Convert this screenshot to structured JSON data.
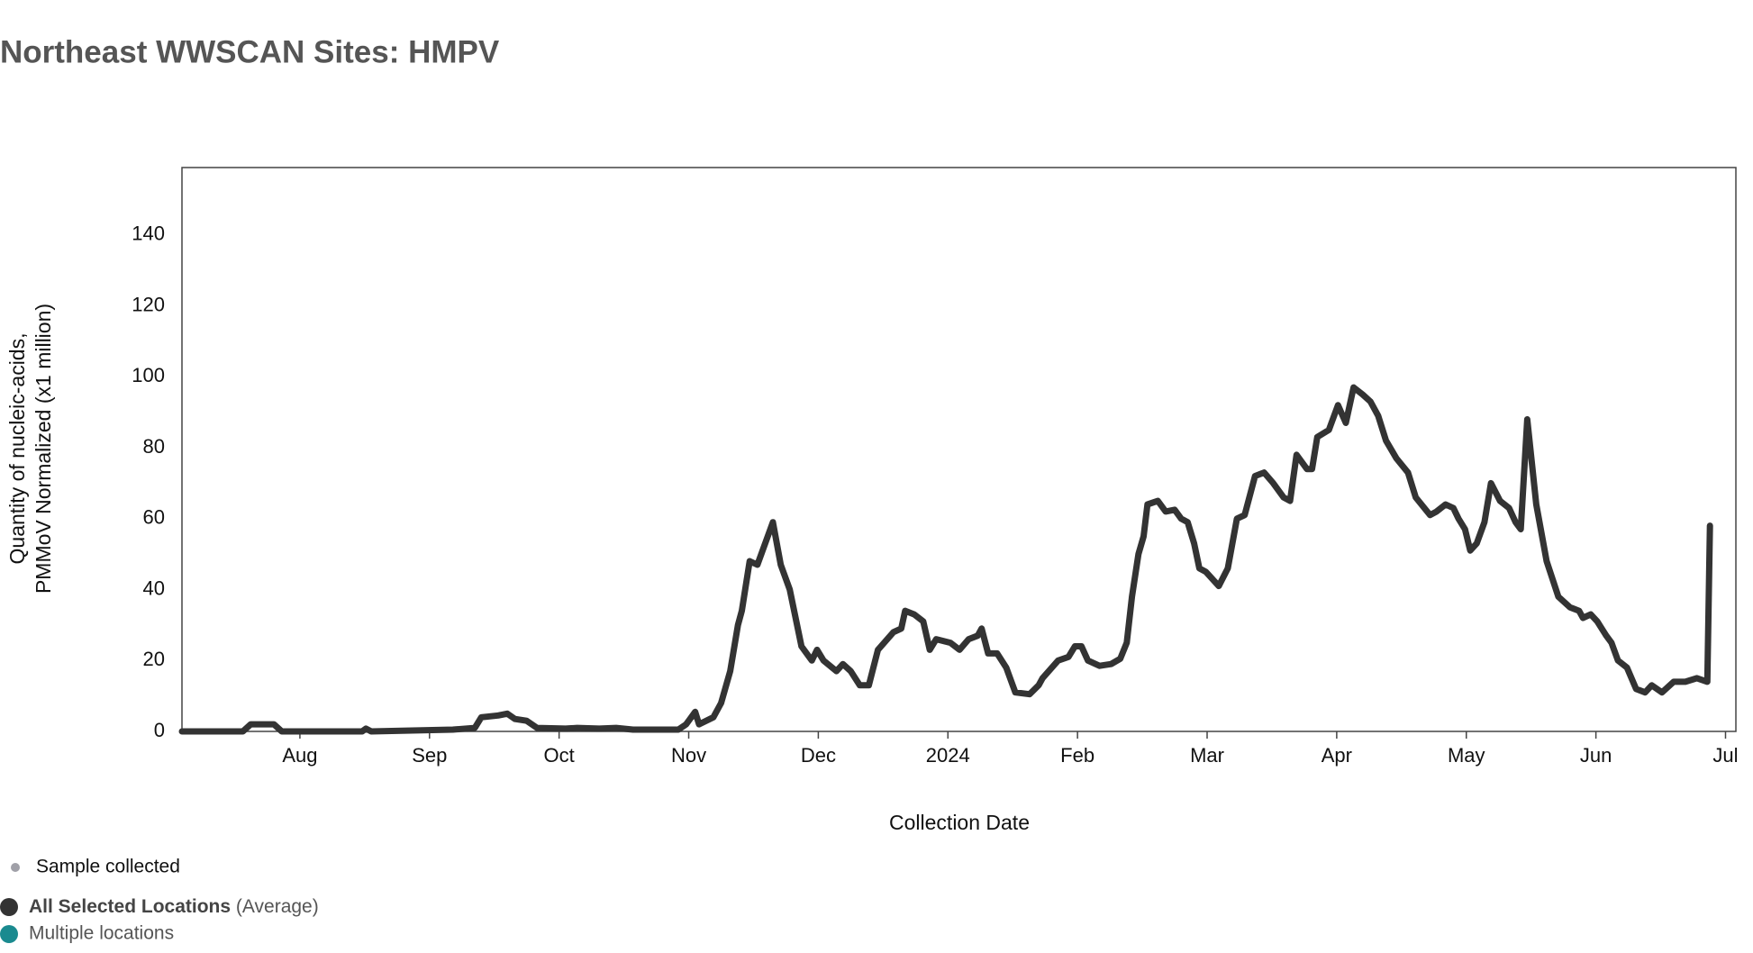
{
  "chart_data": {
    "type": "line",
    "title": "Northeast WWSCAN Sites: HMPV",
    "y_label": [
      "Quantity of nucleic-acids,",
      "PMMoV Normalized (x1 million)"
    ],
    "x_label": "Collection Date",
    "xlim": [
      0.09,
      12.08
    ],
    "xticks": [
      {
        "value": 1,
        "label": "Aug"
      },
      {
        "value": 2,
        "label": "Sep"
      },
      {
        "value": 3,
        "label": "Oct"
      },
      {
        "value": 4,
        "label": "Nov"
      },
      {
        "value": 5,
        "label": "Dec"
      },
      {
        "value": 6,
        "label": "2024"
      },
      {
        "value": 7,
        "label": "Feb"
      },
      {
        "value": 8,
        "label": "Mar"
      },
      {
        "value": 9,
        "label": "Apr"
      },
      {
        "value": 10,
        "label": "May"
      },
      {
        "value": 11,
        "label": "Jun"
      },
      {
        "value": 12,
        "label": "Jul"
      }
    ],
    "ylim": [
      0,
      159
    ],
    "yticks": [
      0,
      20,
      40,
      60,
      80,
      100,
      120,
      140
    ],
    "grid": false,
    "series": [
      {
        "name": "All Selected Locations",
        "name_note": "(Average)",
        "color": "#333333",
        "x": [
          0.09,
          0.56,
          0.62,
          0.8,
          0.86,
          1.48,
          1.51,
          1.55,
          2.18,
          2.35,
          2.4,
          2.53,
          2.6,
          2.66,
          2.75,
          2.83,
          3.05,
          3.14,
          3.31,
          3.44,
          3.57,
          3.92,
          3.98,
          4.05,
          4.08,
          4.19,
          4.25,
          4.32,
          4.38,
          4.41,
          4.47,
          4.53,
          4.65,
          4.71,
          4.78,
          4.87,
          4.95,
          4.99,
          5.04,
          5.14,
          5.19,
          5.25,
          5.32,
          5.39,
          5.46,
          5.58,
          5.64,
          5.67,
          5.74,
          5.81,
          5.86,
          5.91,
          6.02,
          6.09,
          6.16,
          6.23,
          6.26,
          6.31,
          6.38,
          6.45,
          6.52,
          6.63,
          6.7,
          6.73,
          6.85,
          6.93,
          6.98,
          7.03,
          7.08,
          7.17,
          7.26,
          7.33,
          7.38,
          7.42,
          7.47,
          7.51,
          7.54,
          7.62,
          7.68,
          7.75,
          7.8,
          7.85,
          7.9,
          7.94,
          7.99,
          8.09,
          8.16,
          8.23,
          8.29,
          8.37,
          8.44,
          8.51,
          8.59,
          8.64,
          8.69,
          8.77,
          8.81,
          8.85,
          8.94,
          9.01,
          9.07,
          9.13,
          9.2,
          9.26,
          9.32,
          9.38,
          9.46,
          9.55,
          9.61,
          9.72,
          9.77,
          9.84,
          9.9,
          9.94,
          9.99,
          10.03,
          10.08,
          10.14,
          10.19,
          10.26,
          10.33,
          10.38,
          10.42,
          10.47,
          10.54,
          10.62,
          10.71,
          10.8,
          10.87,
          10.9,
          10.96,
          11.01,
          11.08,
          11.12,
          11.17,
          11.24,
          11.31,
          11.38,
          11.43,
          11.51,
          11.6,
          11.69,
          11.78,
          11.86,
          11.88
        ],
        "values": [
          0,
          0,
          2,
          2,
          0,
          0,
          0.8,
          0,
          0.5,
          1,
          4,
          4.5,
          5,
          3.5,
          3,
          1,
          0.8,
          1,
          0.8,
          1,
          0.5,
          0.5,
          2,
          5.5,
          2,
          4,
          8,
          17,
          30,
          34,
          48,
          47,
          59,
          47,
          40,
          24,
          20,
          23,
          20,
          17,
          19,
          17,
          13,
          13,
          23,
          28,
          29,
          34,
          33,
          31,
          23,
          26,
          25,
          23,
          26,
          27,
          29,
          22,
          22,
          18,
          11,
          10.5,
          13,
          15,
          20,
          21,
          24,
          24,
          20,
          18.5,
          19,
          20.5,
          25,
          38,
          50,
          55,
          64,
          65,
          62,
          62.5,
          60,
          59,
          53,
          46,
          45,
          41,
          46,
          60,
          61,
          72,
          73,
          70,
          66,
          65,
          78,
          74,
          74,
          83,
          85,
          92,
          87,
          97,
          95,
          93,
          89,
          82,
          77,
          73,
          66,
          61,
          62,
          64,
          63,
          60,
          57,
          51,
          53,
          59,
          70,
          65,
          63,
          59,
          57,
          88,
          64,
          48,
          38,
          35,
          34,
          32,
          33,
          31,
          27,
          25,
          20,
          18,
          12,
          11,
          13,
          11,
          14,
          14,
          15,
          14,
          58
        ]
      }
    ],
    "legend_notes": [
      {
        "label": "Sample collected",
        "color": "#a0a0a8"
      },
      {
        "label": "Multiple locations",
        "color": "#1a8a8f"
      }
    ]
  }
}
